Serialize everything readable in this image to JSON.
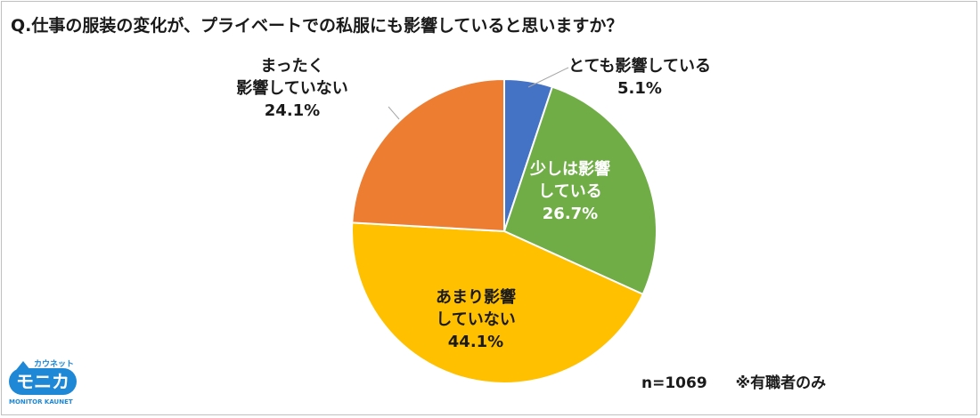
{
  "title": "Q.仕事の服装の変化が、プライベートでの私服にも影響していると思いますか？",
  "note": {
    "n": "n=1069",
    "scope": "※有職者のみ"
  },
  "logo": {
    "top": "カウネット",
    "main": "モニカ",
    "sub": "MONITOR KAUNET"
  },
  "chart_data": {
    "type": "pie",
    "title": "Q.仕事の服装の変化が、プライベートでの私服にも影響していると思いますか？",
    "unit": "%",
    "slices": [
      {
        "label_lines": [
          "とても影響している"
        ],
        "value": 5.1,
        "value_text": "5.1%",
        "color": "#4472c4"
      },
      {
        "label_lines": [
          "少しは影響",
          "している"
        ],
        "value": 26.7,
        "value_text": "26.7%",
        "color": "#70ad47"
      },
      {
        "label_lines": [
          "あまり影響",
          "していない"
        ],
        "value": 44.1,
        "value_text": "44.1%",
        "color": "#ffc000"
      },
      {
        "label_lines": [
          "まったく",
          "影響していない"
        ],
        "value": 24.1,
        "value_text": "24.1%",
        "color": "#ed7d31"
      }
    ],
    "label_placement": [
      "outside",
      "inside",
      "inside",
      "outside"
    ],
    "start_angle": "12 o'clock",
    "direction": "clockwise"
  }
}
